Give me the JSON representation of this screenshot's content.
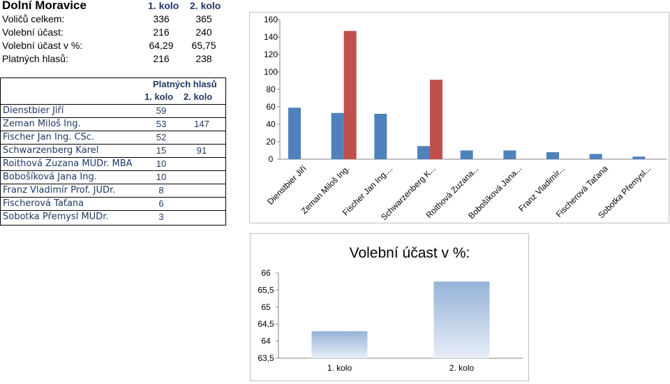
{
  "summary": {
    "title": "Dolní Moravice",
    "round_headers": [
      "1. kolo",
      "2. kolo"
    ],
    "rows": [
      {
        "label": "Voličů celkem:",
        "r1": "336",
        "r2": "365"
      },
      {
        "label": "Volební účast:",
        "r1": "216",
        "r2": "240"
      },
      {
        "label": "Volební účast v %:",
        "r1": "64,29",
        "r2": "65,75"
      },
      {
        "label": "Platných hlasů:",
        "r1": "216",
        "r2": "238"
      }
    ]
  },
  "candidates_table": {
    "header": "Platných hlasů",
    "round_headers": [
      "1. kolo",
      "2. kolo"
    ],
    "rows": [
      {
        "name": "Dienstbier Jiří",
        "r1": "59",
        "r2": ""
      },
      {
        "name": "Zeman Miloš Ing.",
        "r1": "53",
        "r2": "147"
      },
      {
        "name": "Fischer Jan Ing. CSc.",
        "r1": "52",
        "r2": ""
      },
      {
        "name": "Schwarzenberg Karel",
        "r1": "15",
        "r2": "91"
      },
      {
        "name": "Roithová Zuzana MUDr. MBA",
        "r1": "10",
        "r2": ""
      },
      {
        "name": "Bobošíková Jana Ing.",
        "r1": "10",
        "r2": ""
      },
      {
        "name": "Franz Vladimír Prof. JUDr.",
        "r1": "8",
        "r2": ""
      },
      {
        "name": "Fischerová Taťana",
        "r1": "6",
        "r2": ""
      },
      {
        "name": "Sobotka Přemysl MUDr.",
        "r1": "3",
        "r2": ""
      }
    ]
  },
  "chart_data": [
    {
      "type": "bar",
      "categories": [
        "Dienstbier Jiří",
        "Zeman Miloš Ing.",
        "Fischer Jan Ing....",
        "Schwarzenberg K...",
        "Roithová Zuzana...",
        "Bobošíková Jana...",
        "Franz Vladimír...",
        "Fischerová Taťana",
        "Sobotka Přemysl..."
      ],
      "series": [
        {
          "values": [
            59,
            53,
            52,
            15,
            10,
            10,
            8,
            6,
            3
          ],
          "color": "#4f81bd"
        },
        {
          "values": [
            null,
            147,
            null,
            91,
            null,
            null,
            null,
            null,
            null
          ],
          "color": "#c0504d"
        }
      ],
      "yticks": [
        "0",
        "20",
        "40",
        "60",
        "80",
        "100",
        "120",
        "140",
        "160"
      ],
      "ylim": [
        0,
        160
      ],
      "grid": false
    },
    {
      "type": "bar",
      "title": "Volební účast v %:",
      "categories": [
        "1. kolo",
        "2. kolo"
      ],
      "values": [
        64.29,
        65.75
      ],
      "yticks": [
        "63,5",
        "64",
        "64,5",
        "65",
        "65,5",
        "66"
      ],
      "ylim": [
        63.5,
        66
      ],
      "color": "#95b3d7",
      "grid": false
    }
  ]
}
